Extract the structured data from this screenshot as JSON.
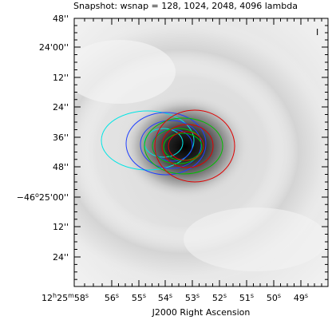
{
  "title": "Snapshot: wsnap = 128, 1024, 2048, 4096 lambda",
  "corner_label": "I",
  "x_axis": {
    "label": "J2000 Right Ascension",
    "ticks": [
      {
        "h": "12",
        "m": "25",
        "s": "58"
      },
      {
        "s": "56"
      },
      {
        "s": "55"
      },
      {
        "s": "54"
      },
      {
        "s": "53"
      },
      {
        "s": "52"
      },
      {
        "s": "51"
      },
      {
        "s": "50"
      },
      {
        "s": "49"
      }
    ]
  },
  "y_axis": {
    "ticks": [
      {
        "text": "48''"
      },
      {
        "text": "24'00''"
      },
      {
        "text": "12''"
      },
      {
        "text": "24''"
      },
      {
        "text": "36''"
      },
      {
        "text": "48''"
      },
      {
        "deg": "−46",
        "min": "25",
        "sec": "00"
      },
      {
        "text": "12''"
      },
      {
        "text": "24''"
      }
    ]
  },
  "contour_colors": {
    "cyan": "#00e5e5",
    "blue": "#2040ff",
    "green": "#00c000",
    "red": "#e00000"
  }
}
